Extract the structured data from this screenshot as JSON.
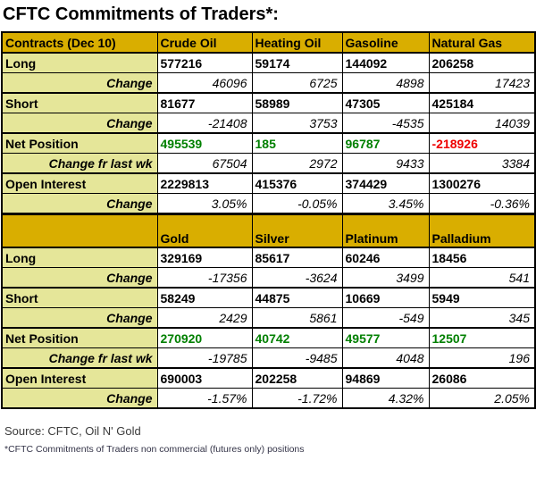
{
  "title": "CFTC Commitments of Traders*:",
  "source": "Source: CFTC, Oil N' Gold",
  "footnote": "*CFTC Commitments of Traders non commercial (futures only) positions",
  "colors": {
    "header_bg": "#D9AE00",
    "label_bg": "#E5E699",
    "positive": "#008000",
    "negative": "#EE0000"
  },
  "chart_data": {
    "type": "table",
    "title": "CFTC Commitments of Traders*:",
    "sections": [
      {
        "columns": [
          "Contracts (Dec 10)",
          "Crude Oil",
          "Heating Oil",
          "Gasoline",
          "Natural Gas"
        ],
        "rows": [
          {
            "label": "Long",
            "type": "main",
            "values": [
              "577216",
              "59174",
              "144092",
              "206258"
            ]
          },
          {
            "label": "Change",
            "type": "change",
            "values": [
              "46096",
              "6725",
              "4898",
              "17423"
            ]
          },
          {
            "label": "Short",
            "type": "main",
            "values": [
              "81677",
              "58989",
              "47305",
              "425184"
            ]
          },
          {
            "label": "Change",
            "type": "change",
            "values": [
              "-21408",
              "3753",
              "-4535",
              "14039"
            ]
          },
          {
            "label": "Net Position",
            "type": "main",
            "values": [
              "495539",
              "185",
              "96787",
              "-218926"
            ],
            "value_colors": [
              "positive",
              "positive",
              "positive",
              "negative"
            ]
          },
          {
            "label": "Change fr last wk",
            "type": "change",
            "values": [
              "67504",
              "2972",
              "9433",
              "3384"
            ]
          },
          {
            "label": "Open Interest",
            "type": "main",
            "values": [
              "2229813",
              "415376",
              "374429",
              "1300276"
            ]
          },
          {
            "label": "Change",
            "type": "change",
            "values": [
              "3.05%",
              "-0.05%",
              "3.45%",
              "-0.36%"
            ]
          }
        ]
      },
      {
        "columns": [
          "",
          "Gold",
          "Silver",
          "Platinum",
          "Palladium"
        ],
        "rows": [
          {
            "label": "Long",
            "type": "main",
            "values": [
              "329169",
              "85617",
              "60246",
              "18456"
            ]
          },
          {
            "label": "Change",
            "type": "change",
            "values": [
              "-17356",
              "-3624",
              "3499",
              "541"
            ]
          },
          {
            "label": "Short",
            "type": "main",
            "values": [
              "58249",
              "44875",
              "10669",
              "5949"
            ]
          },
          {
            "label": "Change",
            "type": "change",
            "values": [
              "2429",
              "5861",
              "-549",
              "345"
            ]
          },
          {
            "label": "Net Position",
            "type": "main",
            "values": [
              "270920",
              "40742",
              "49577",
              "12507"
            ],
            "value_colors": [
              "positive",
              "positive",
              "positive",
              "positive"
            ]
          },
          {
            "label": "Change fr last wk",
            "type": "change",
            "values": [
              "-19785",
              "-9485",
              "4048",
              "196"
            ]
          },
          {
            "label": "Open Interest",
            "type": "main",
            "values": [
              "690003",
              "202258",
              "94869",
              "26086"
            ]
          },
          {
            "label": "Change",
            "type": "change",
            "values": [
              "-1.57%",
              "-1.72%",
              "4.32%",
              "2.05%"
            ]
          }
        ]
      }
    ]
  }
}
